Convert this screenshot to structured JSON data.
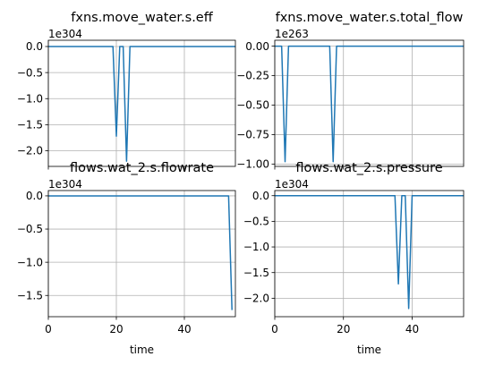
{
  "chart_data": [
    {
      "type": "line",
      "title": "fxns.move_water.s.eff",
      "xlabel": "",
      "ylabel": "",
      "offset_label": "1e304",
      "xlim": [
        0,
        55
      ],
      "ylim": [
        -2.3,
        0.12
      ],
      "grid": true,
      "color": "#1f77b4",
      "yticks": [
        0.0,
        -0.5,
        -1.0,
        -1.5,
        -2.0
      ],
      "ytick_labels": [
        "0.0",
        "−0.5",
        "−1.0",
        "−1.5",
        "−2.0"
      ],
      "xticks": [
        0,
        20,
        40
      ],
      "xtick_labels": [
        "",
        "",
        ""
      ],
      "series": [
        {
          "x": [
            0,
            19,
            20,
            21,
            22,
            23,
            24,
            55
          ],
          "y": [
            0,
            0,
            -1.72,
            0,
            0,
            -2.2,
            0,
            0
          ]
        }
      ]
    },
    {
      "type": "line",
      "title": "fxns.move_water.s.total_flow",
      "xlabel": "",
      "ylabel": "",
      "offset_label": "1e263",
      "xlim": [
        0,
        55
      ],
      "ylim": [
        -1.02,
        0.05
      ],
      "grid": true,
      "color": "#1f77b4",
      "yticks": [
        0.0,
        -0.25,
        -0.5,
        -0.75,
        -1.0
      ],
      "ytick_labels": [
        "0.00",
        "−0.25",
        "−0.50",
        "−0.75",
        "−1.00"
      ],
      "xticks": [
        0,
        20,
        40
      ],
      "xtick_labels": [
        "",
        "",
        ""
      ],
      "series": [
        {
          "x": [
            0,
            2,
            3,
            4,
            16,
            17,
            18,
            55
          ],
          "y": [
            0,
            0,
            -0.98,
            0,
            0,
            -0.98,
            0,
            0
          ]
        }
      ]
    },
    {
      "type": "line",
      "title": "flows.wat_2.s.flowrate",
      "xlabel": "time",
      "ylabel": "",
      "offset_label": "1e304",
      "xlim": [
        0,
        55
      ],
      "ylim": [
        -1.82,
        0.08
      ],
      "grid": true,
      "color": "#1f77b4",
      "yticks": [
        0.0,
        -0.5,
        -1.0,
        -1.5
      ],
      "ytick_labels": [
        "0.0",
        "−0.5",
        "−1.0",
        "−1.5"
      ],
      "xticks": [
        0,
        20,
        40
      ],
      "xtick_labels": [
        "0",
        "20",
        "40"
      ],
      "series": [
        {
          "x": [
            0,
            53,
            54
          ],
          "y": [
            0,
            0,
            -1.72
          ]
        }
      ]
    },
    {
      "type": "line",
      "title": "flows.wat_2.s.pressure",
      "xlabel": "time",
      "ylabel": "",
      "offset_label": "1e304",
      "xlim": [
        0,
        55
      ],
      "ylim": [
        -2.36,
        0.1
      ],
      "grid": true,
      "color": "#1f77b4",
      "yticks": [
        0.0,
        -0.5,
        -1.0,
        -1.5,
        -2.0
      ],
      "ytick_labels": [
        "0.0",
        "−0.5",
        "−1.0",
        "−1.5",
        "−2.0"
      ],
      "xticks": [
        0,
        20,
        40
      ],
      "xtick_labels": [
        "0",
        "20",
        "40"
      ],
      "series": [
        {
          "x": [
            0,
            35,
            36,
            37,
            38,
            39,
            40,
            55
          ],
          "y": [
            0,
            0,
            -1.72,
            0,
            0,
            -2.2,
            0,
            0
          ]
        }
      ]
    }
  ]
}
